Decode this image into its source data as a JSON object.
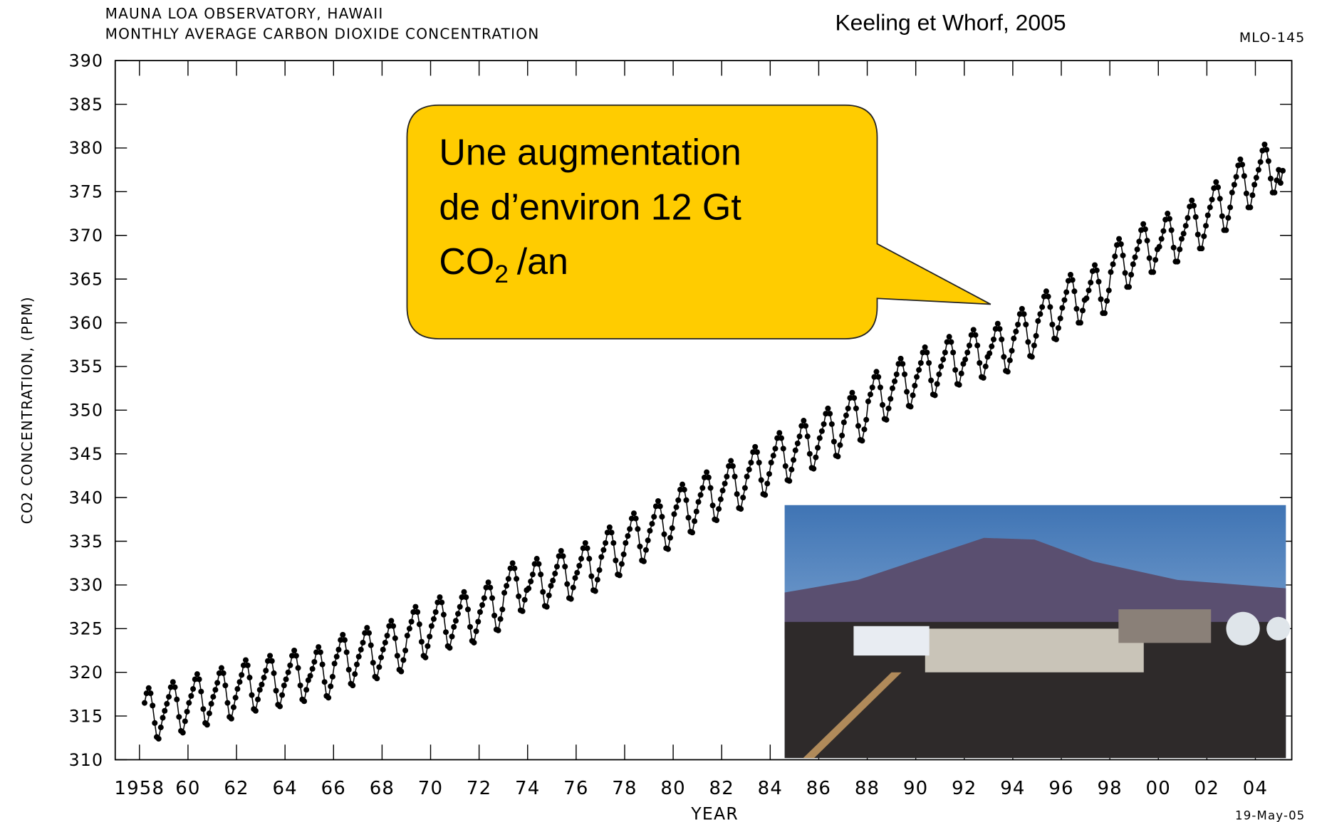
{
  "chart_data": {
    "type": "scatter-line",
    "title": "MAUNA LOA OBSERVATORY, HAWAII",
    "subtitle": "MONTHLY AVERAGE CARBON DIOXIDE CONCENTRATION",
    "source": "Keeling et Whorf, 2005",
    "code": "MLO-145",
    "date": "19-May-05",
    "x_label": "YEAR",
    "y_label": "CO2 CONCENTRATION, (PPM)",
    "annotation": {
      "lines": [
        "Une augmentation",
        "de d’environ 12 Gt"
      ],
      "formula": "CO",
      "subscript": "2",
      "unit": "/an"
    },
    "color": "#000000",
    "xlim": [
      1957,
      2005.5
    ],
    "ylim": [
      310,
      390
    ],
    "xticks": [
      1958,
      {
        "value": 1960,
        "label": "60"
      },
      {
        "value": 1962,
        "label": "62"
      },
      {
        "value": 1964,
        "label": "64"
      },
      {
        "value": 1966,
        "label": "66"
      },
      {
        "value": 1968,
        "label": "68"
      },
      {
        "value": 1970,
        "label": "70"
      },
      {
        "value": 1972,
        "label": "72"
      },
      {
        "value": 1974,
        "label": "74"
      },
      {
        "value": 1976,
        "label": "76"
      },
      {
        "value": 1978,
        "label": "78"
      },
      {
        "value": 1980,
        "label": "80"
      },
      {
        "value": 1982,
        "label": "82"
      },
      {
        "value": 1984,
        "label": "84"
      },
      {
        "value": 1986,
        "label": "86"
      },
      {
        "value": 1988,
        "label": "88"
      },
      {
        "value": 1990,
        "label": "90"
      },
      {
        "value": 1992,
        "label": "92"
      },
      {
        "value": 1994,
        "label": "94"
      },
      {
        "value": 1996,
        "label": "96"
      },
      {
        "value": 1998,
        "label": "98"
      },
      {
        "value": 2000,
        "label": "00"
      },
      {
        "value": 2002,
        "label": "02"
      },
      {
        "value": 2004,
        "label": "04"
      }
    ],
    "yticks": [
      310,
      315,
      320,
      325,
      330,
      335,
      340,
      345,
      350,
      355,
      360,
      365,
      370,
      375,
      380,
      385,
      390
    ],
    "x": [
      1958.21,
      1958.29,
      1958.38,
      1958.46,
      1958.54,
      1958.63,
      1958.71,
      1958.79,
      1958.88,
      1958.96,
      1959.04,
      1959.13,
      1959.21,
      1959.29,
      1959.38,
      1959.46,
      1959.54,
      1959.63,
      1959.71,
      1959.79,
      1959.88,
      1959.96,
      1960.04,
      1960.13,
      1960.21,
      1960.29,
      1960.38,
      1960.46,
      1960.54,
      1960.63,
      1960.71,
      1960.79,
      1960.88,
      1960.96,
      1961.04,
      1961.13,
      1961.21,
      1961.29,
      1961.38,
      1961.46,
      1961.54,
      1961.63,
      1961.71,
      1961.79,
      1961.88,
      1961.96,
      1962.04,
      1962.13,
      1962.21,
      1962.29,
      1962.38,
      1962.46,
      1962.54,
      1962.63,
      1962.71,
      1962.79,
      1962.88,
      1962.96,
      1963.04,
      1963.13,
      1963.21,
      1963.29,
      1963.38,
      1963.46,
      1963.54,
      1963.63,
      1963.71,
      1963.79,
      1963.88,
      1963.96,
      1964.04,
      1964.13,
      1964.21,
      1964.29,
      1964.38,
      1964.46,
      1964.54,
      1964.63,
      1964.71,
      1964.79,
      1964.88,
      1964.96,
      1965.04,
      1965.13,
      1965.21,
      1965.29,
      1965.38,
      1965.46,
      1965.54,
      1965.63,
      1965.71,
      1965.79,
      1965.88,
      1965.96,
      1966.04,
      1966.13,
      1966.21,
      1966.29,
      1966.38,
      1966.46,
      1966.54,
      1966.63,
      1966.71,
      1966.79,
      1966.88,
      1966.96,
      1967.04,
      1967.13,
      1967.21,
      1967.29,
      1967.38,
      1967.46,
      1967.54,
      1967.63,
      1967.71,
      1967.79,
      1967.88,
      1967.96,
      1968.04,
      1968.13,
      1968.21,
      1968.29,
      1968.38,
      1968.46,
      1968.54,
      1968.63,
      1968.71,
      1968.79,
      1968.88,
      1968.96,
      1969.04,
      1969.13,
      1969.21,
      1969.29,
      1969.38,
      1969.46,
      1969.54,
      1969.63,
      1969.71,
      1969.79,
      1969.88,
      1969.96,
      1970.04,
      1970.13,
      1970.21,
      1970.29,
      1970.38,
      1970.46,
      1970.54,
      1970.63,
      1970.71,
      1970.79,
      1970.88,
      1970.96,
      1971.04,
      1971.13,
      1971.21,
      1971.29,
      1971.38,
      1971.46,
      1971.54,
      1971.63,
      1971.71,
      1971.79,
      1971.88,
      1971.96,
      1972.04,
      1972.13,
      1972.21,
      1972.29,
      1972.38,
      1972.46,
      1972.54,
      1972.63,
      1972.71,
      1972.79,
      1972.88,
      1972.96,
      1973.04,
      1973.13,
      1973.21,
      1973.29,
      1973.38,
      1973.46,
      1973.54,
      1973.63,
      1973.71,
      1973.79,
      1973.88,
      1973.96,
      1974.04,
      1974.13,
      1974.21,
      1974.29,
      1974.38,
      1974.46,
      1974.54,
      1974.63,
      1974.71,
      1974.79,
      1974.88,
      1974.96,
      1975.04,
      1975.13,
      1975.21,
      1975.29,
      1975.38,
      1975.46,
      1975.54,
      1975.63,
      1975.71,
      1975.79,
      1975.88,
      1975.96,
      1976.04,
      1976.13,
      1976.21,
      1976.29,
      1976.38,
      1976.46,
      1976.54,
      1976.63,
      1976.71,
      1976.79,
      1976.88,
      1976.96,
      1977.04,
      1977.13,
      1977.21,
      1977.29,
      1977.38,
      1977.46,
      1977.54,
      1977.63,
      1977.71,
      1977.79,
      1977.88,
      1977.96,
      1978.04,
      1978.13,
      1978.21,
      1978.29,
      1978.38,
      1978.46,
      1978.54,
      1978.63,
      1978.71,
      1978.79,
      1978.88,
      1978.96,
      1979.04,
      1979.13,
      1979.21,
      1979.29,
      1979.38,
      1979.46,
      1979.54,
      1979.63,
      1979.71,
      1979.79,
      1979.88,
      1979.96,
      1980.04,
      1980.13,
      1980.21,
      1980.29,
      1980.38,
      1980.46,
      1980.54,
      1980.63,
      1980.71,
      1980.79,
      1980.88,
      1980.96,
      1981.04,
      1981.13,
      1981.21,
      1981.29,
      1981.38,
      1981.46,
      1981.54,
      1981.63,
      1981.71,
      1981.79,
      1981.88,
      1981.96,
      1982.04,
      1982.13,
      1982.21,
      1982.29,
      1982.38,
      1982.46,
      1982.54,
      1982.63,
      1982.71,
      1982.79,
      1982.88,
      1982.96,
      1983.04,
      1983.13,
      1983.21,
      1983.29,
      1983.38,
      1983.46,
      1983.54,
      1983.63,
      1983.71,
      1983.79,
      1983.88,
      1983.96,
      1984.04,
      1984.13,
      1984.21,
      1984.29,
      1984.38,
      1984.46,
      1984.54,
      1984.63,
      1984.71,
      1984.79,
      1984.88,
      1984.96,
      1985.04,
      1985.13,
      1985.21,
      1985.29,
      1985.38,
      1985.46,
      1985.54,
      1985.63,
      1985.71,
      1985.79,
      1985.88,
      1985.96,
      1986.04,
      1986.13,
      1986.21,
      1986.29,
      1986.38,
      1986.46,
      1986.54,
      1986.63,
      1986.71,
      1986.79,
      1986.88,
      1986.96,
      1987.04,
      1987.13,
      1987.21,
      1987.29,
      1987.38,
      1987.46,
      1987.54,
      1987.63,
      1987.71,
      1987.79,
      1987.88,
      1987.96,
      1988.04,
      1988.13,
      1988.21,
      1988.29,
      1988.38,
      1988.46,
      1988.54,
      1988.63,
      1988.71,
      1988.79,
      1988.88,
      1988.96,
      1989.04,
      1989.13,
      1989.21,
      1989.29,
      1989.38,
      1989.46,
      1989.54,
      1989.63,
      1989.71,
      1989.79,
      1989.88,
      1989.96,
      1990.04,
      1990.13,
      1990.21,
      1990.29,
      1990.38,
      1990.46,
      1990.54,
      1990.63,
      1990.71,
      1990.79,
      1990.88,
      1990.96,
      1991.04,
      1991.13,
      1991.21,
      1991.29,
      1991.38,
      1991.46,
      1991.54,
      1991.63,
      1991.71,
      1991.79,
      1991.88,
      1991.96,
      1992.04,
      1992.13,
      1992.21,
      1992.29,
      1992.38,
      1992.46,
      1992.54,
      1992.63,
      1992.71,
      1992.79,
      1992.88,
      1992.96,
      1993.04,
      1993.13,
      1993.21,
      1993.29,
      1993.38,
      1993.46,
      1993.54,
      1993.63,
      1993.71,
      1993.79,
      1993.88,
      1993.96,
      1994.04,
      1994.13,
      1994.21,
      1994.29,
      1994.38,
      1994.46,
      1994.54,
      1994.63,
      1994.71,
      1994.79,
      1994.88,
      1994.96,
      1995.04,
      1995.13,
      1995.21,
      1995.29,
      1995.38,
      1995.46,
      1995.54,
      1995.63,
      1995.71,
      1995.79,
      1995.88,
      1995.96,
      1996.04,
      1996.13,
      1996.21,
      1996.29,
      1996.38,
      1996.46,
      1996.54,
      1996.63,
      1996.71,
      1996.79,
      1996.88,
      1996.96,
      1997.04,
      1997.13,
      1997.21,
      1997.29,
      1997.38,
      1997.46,
      1997.54,
      1997.63,
      1997.71,
      1997.79,
      1997.88,
      1997.96,
      1998.04,
      1998.13,
      1998.21,
      1998.29,
      1998.38,
      1998.46,
      1998.54,
      1998.63,
      1998.71,
      1998.79,
      1998.88,
      1998.96,
      1999.04,
      1999.13,
      1999.21,
      1999.29,
      1999.38,
      1999.46,
      1999.54,
      1999.63,
      1999.71,
      1999.79,
      1999.88,
      1999.96,
      2000.04,
      2000.13,
      2000.21,
      2000.29,
      2000.38,
      2000.46,
      2000.54,
      2000.63,
      2000.71,
      2000.79,
      2000.88,
      2000.96,
      2001.04,
      2001.13,
      2001.21,
      2001.29,
      2001.38,
      2001.46,
      2001.54,
      2001.63,
      2001.71,
      2001.79,
      2001.88,
      2001.96,
      2002.04,
      2002.13,
      2002.21,
      2002.29,
      2002.38,
      2002.46,
      2002.54,
      2002.63,
      2002.71,
      2002.79,
      2002.88,
      2002.96,
      2003.04,
      2003.13,
      2003.21,
      2003.29,
      2003.38,
      2003.46,
      2003.54,
      2003.63,
      2003.71,
      2003.79,
      2003.88,
      2003.96,
      2004.04,
      2004.13,
      2004.21,
      2004.29,
      2004.38,
      2004.46,
      2004.54,
      2004.63,
      2004.71,
      2004.79,
      2004.88,
      2004.96,
      2005.04,
      2005.13
    ],
    "values": [
      316.5,
      317.6,
      318.2,
      317.6,
      316.2,
      314.2,
      312.6,
      312.4,
      313.7,
      314.8,
      315.6,
      316.4,
      317.2,
      318.3,
      318.9,
      318.3,
      316.9,
      314.9,
      313.3,
      313.1,
      314.4,
      315.5,
      316.5,
      317.3,
      318.1,
      319.2,
      319.8,
      319.2,
      317.8,
      315.8,
      314.2,
      314.0,
      315.3,
      316.4,
      317.2,
      318.0,
      318.8,
      319.9,
      320.5,
      319.9,
      318.5,
      316.5,
      314.9,
      314.7,
      316.0,
      317.1,
      318.1,
      318.9,
      319.7,
      320.8,
      321.4,
      320.8,
      319.4,
      317.4,
      315.8,
      315.6,
      316.9,
      318.0,
      318.6,
      319.4,
      320.2,
      321.3,
      321.9,
      321.3,
      319.9,
      317.9,
      316.3,
      316.1,
      317.4,
      318.5,
      319.2,
      320.0,
      320.8,
      321.9,
      322.5,
      321.9,
      320.5,
      318.5,
      316.9,
      316.7,
      318.0,
      319.1,
      319.6,
      320.4,
      321.2,
      322.3,
      322.9,
      322.3,
      320.9,
      318.9,
      317.3,
      317.1,
      318.4,
      319.5,
      321.0,
      321.8,
      322.6,
      323.7,
      324.3,
      323.7,
      322.3,
      320.3,
      318.7,
      318.5,
      319.8,
      320.9,
      321.8,
      322.6,
      323.4,
      324.5,
      325.1,
      324.5,
      323.1,
      321.1,
      319.5,
      319.3,
      320.6,
      321.7,
      322.6,
      323.4,
      324.2,
      325.3,
      325.9,
      325.3,
      323.9,
      321.9,
      320.3,
      320.1,
      321.4,
      322.5,
      324.2,
      325.0,
      325.8,
      326.9,
      327.5,
      326.9,
      325.5,
      323.5,
      321.9,
      321.7,
      323.0,
      324.1,
      325.3,
      326.1,
      326.9,
      328.0,
      328.6,
      328.0,
      326.6,
      324.6,
      323.0,
      322.8,
      324.1,
      325.2,
      325.9,
      326.7,
      327.5,
      328.6,
      329.2,
      328.6,
      327.2,
      325.2,
      323.6,
      323.4,
      324.7,
      325.8,
      326.9,
      327.7,
      328.5,
      329.7,
      330.3,
      329.7,
      328.5,
      326.5,
      324.9,
      324.8,
      326.1,
      327.2,
      329.1,
      329.9,
      330.7,
      331.9,
      332.5,
      331.9,
      330.7,
      328.7,
      327.1,
      327.0,
      328.3,
      329.4,
      329.6,
      330.4,
      331.2,
      332.4,
      333.0,
      332.4,
      331.2,
      329.2,
      327.6,
      327.5,
      328.8,
      329.9,
      330.5,
      331.3,
      332.1,
      333.3,
      333.9,
      333.3,
      332.1,
      330.1,
      328.5,
      328.4,
      329.7,
      330.8,
      331.4,
      332.2,
      333.0,
      334.2,
      334.8,
      334.2,
      333.0,
      331.0,
      329.4,
      329.3,
      330.6,
      331.7,
      333.2,
      334.0,
      334.8,
      336.0,
      336.6,
      336.0,
      334.8,
      332.8,
      331.2,
      331.1,
      332.4,
      333.5,
      334.8,
      335.6,
      336.4,
      337.6,
      338.2,
      337.6,
      336.4,
      334.4,
      332.8,
      332.7,
      334.0,
      335.1,
      336.2,
      337.0,
      337.8,
      339.0,
      339.6,
      339.0,
      337.8,
      335.8,
      334.2,
      334.1,
      335.4,
      336.5,
      338.1,
      338.9,
      339.7,
      340.9,
      341.5,
      340.9,
      339.7,
      337.7,
      336.1,
      336.0,
      337.3,
      338.4,
      339.5,
      340.3,
      341.1,
      342.3,
      342.9,
      342.3,
      341.1,
      339.1,
      337.5,
      337.4,
      338.7,
      339.8,
      340.8,
      341.6,
      342.4,
      343.6,
      344.2,
      343.6,
      342.4,
      340.4,
      338.8,
      338.7,
      340.0,
      341.1,
      342.4,
      343.2,
      344.0,
      345.2,
      345.8,
      345.2,
      344.0,
      342.0,
      340.4,
      340.3,
      341.6,
      342.7,
      344.0,
      344.8,
      345.6,
      346.8,
      347.4,
      346.8,
      345.6,
      343.6,
      342.0,
      341.9,
      343.2,
      344.3,
      345.4,
      346.2,
      347.0,
      348.2,
      348.8,
      348.2,
      347.0,
      345.0,
      343.4,
      343.3,
      344.6,
      345.7,
      346.8,
      347.6,
      348.4,
      349.6,
      350.2,
      349.6,
      348.4,
      346.4,
      344.8,
      344.7,
      346.0,
      347.1,
      348.6,
      349.4,
      350.2,
      351.4,
      352.0,
      351.4,
      350.2,
      348.2,
      346.6,
      346.5,
      347.8,
      348.9,
      351.0,
      351.8,
      352.6,
      353.8,
      354.4,
      353.8,
      352.6,
      350.6,
      349.0,
      348.9,
      350.2,
      351.3,
      352.5,
      353.3,
      354.1,
      355.3,
      355.9,
      355.3,
      354.1,
      352.1,
      350.5,
      350.4,
      351.7,
      352.8,
      353.8,
      354.6,
      355.4,
      356.6,
      357.2,
      356.6,
      355.4,
      353.4,
      351.8,
      351.7,
      353.0,
      354.1,
      355.0,
      355.8,
      356.6,
      357.8,
      358.4,
      357.8,
      356.6,
      354.6,
      353.0,
      352.9,
      354.2,
      355.3,
      355.8,
      356.6,
      357.4,
      358.6,
      359.2,
      358.6,
      357.4,
      355.4,
      353.8,
      353.7,
      355.0,
      356.1,
      356.5,
      357.3,
      358.1,
      359.3,
      359.9,
      359.3,
      358.1,
      356.1,
      354.5,
      354.4,
      355.7,
      356.8,
      358.2,
      359.0,
      359.8,
      361.0,
      361.6,
      361.0,
      359.8,
      357.8,
      356.2,
      356.1,
      357.4,
      358.5,
      360.2,
      361.0,
      361.8,
      363.0,
      363.6,
      363.0,
      361.8,
      359.8,
      358.2,
      358.1,
      359.4,
      360.5,
      361.7,
      362.6,
      363.5,
      364.8,
      365.5,
      364.9,
      363.6,
      361.6,
      360.0,
      360.0,
      361.4,
      362.6,
      362.8,
      363.7,
      364.6,
      365.9,
      366.6,
      366.0,
      364.7,
      362.7,
      361.1,
      361.1,
      362.5,
      363.7,
      365.8,
      366.7,
      367.6,
      368.9,
      369.6,
      369.0,
      367.7,
      365.7,
      364.1,
      364.1,
      365.5,
      366.7,
      367.5,
      368.4,
      369.3,
      370.6,
      371.3,
      370.7,
      369.4,
      367.4,
      365.8,
      365.8,
      367.2,
      368.4,
      368.7,
      369.6,
      370.5,
      371.8,
      372.5,
      371.9,
      370.6,
      368.6,
      367.0,
      367.0,
      368.4,
      369.6,
      370.2,
      371.1,
      372.0,
      373.3,
      374.0,
      373.4,
      372.1,
      370.1,
      368.5,
      368.5,
      369.9,
      371.1,
      372.3,
      373.2,
      374.1,
      375.4,
      376.1,
      375.5,
      374.2,
      372.2,
      370.6,
      370.6,
      372.0,
      373.2,
      374.9,
      375.8,
      376.7,
      378.0,
      378.7,
      378.1,
      376.8,
      374.8,
      373.2,
      373.2,
      374.6,
      375.8,
      376.6,
      377.5,
      378.4,
      379.7,
      380.4,
      379.8,
      378.5,
      376.5,
      374.9,
      374.9,
      376.3,
      377.5,
      376.0,
      377.4
    ]
  }
}
